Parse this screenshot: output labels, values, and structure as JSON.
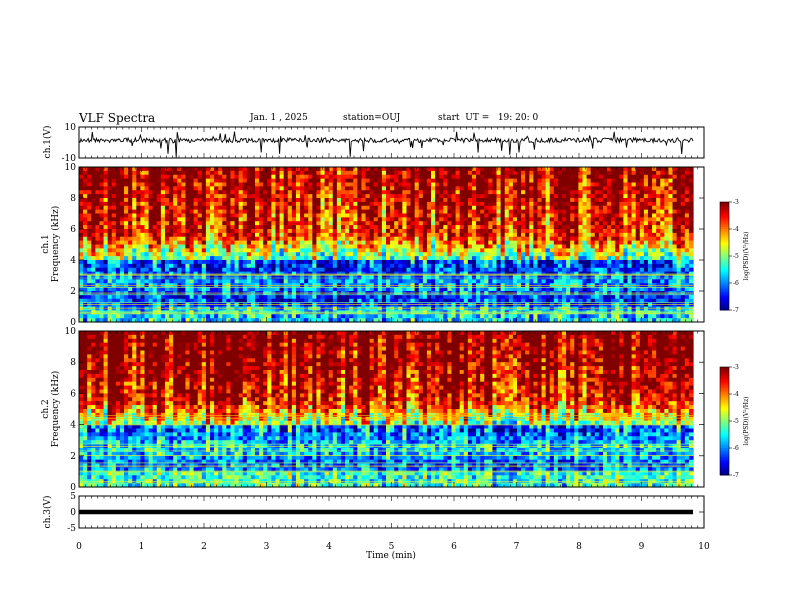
{
  "header": {
    "title": "VLF Spectra",
    "date": "Jan. 1 , 2025",
    "station": "station=OUJ",
    "start": "start  UT =   19: 20: 0"
  },
  "chart_data": [
    {
      "type": "line",
      "panel": "ch1-waveform",
      "ylabel": "ch.1(V)",
      "ylim": [
        -10,
        10
      ],
      "yticks": [
        "10",
        "-10"
      ],
      "xlim": [
        0,
        10
      ]
    },
    {
      "type": "heatmap",
      "panel": "ch1-spectrogram",
      "ylabel": "ch.1\nFrequency (kHz)",
      "ylabel_lines": [
        "ch.1",
        "Frequency (kHz)"
      ],
      "ylim": [
        0,
        10
      ],
      "yticks": [
        "0",
        "2",
        "4",
        "6",
        "8",
        "10"
      ],
      "colorbar": {
        "label": "log(PSD)(V²/Hz)",
        "range": [
          -7,
          -3
        ],
        "ticks": [
          "-3",
          "-4",
          "-5",
          "-6",
          "-7"
        ]
      }
    },
    {
      "type": "heatmap",
      "panel": "ch2-spectrogram",
      "ylabel": "ch.2\nFrequency (kHz)",
      "ylabel_lines": [
        "ch.2",
        "Frequency (kHz)"
      ],
      "ylim": [
        0,
        10
      ],
      "yticks": [
        "0",
        "2",
        "4",
        "6",
        "8",
        "10"
      ],
      "colorbar": {
        "label": "log(PSD)(V²/Hz)",
        "range": [
          -7,
          -3
        ],
        "ticks": [
          "-3",
          "-4",
          "-5",
          "-6",
          "-7"
        ]
      }
    },
    {
      "type": "line",
      "panel": "ch3-waveform",
      "ylabel": "ch.3(V)",
      "ylim": [
        -5,
        5
      ],
      "yticks": [
        "5",
        "0",
        "-5"
      ],
      "series": [
        {
          "values": [
            0
          ]
        }
      ]
    }
  ],
  "xaxis": {
    "label": "Time (min)",
    "ticks": [
      "0",
      "1",
      "2",
      "3",
      "4",
      "5",
      "6",
      "7",
      "8",
      "9",
      "10"
    ]
  },
  "colorbar_label_parts": [
    "log(PSD)(V",
    "2",
    "/Hz)"
  ]
}
